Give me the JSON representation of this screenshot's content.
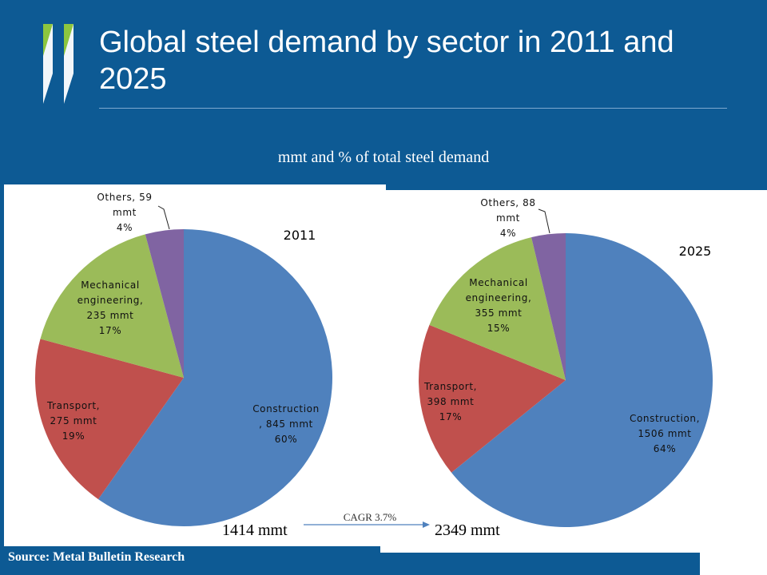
{
  "header": {
    "title": "Global steel demand by sector in 2011 and 2025",
    "subtitle": "mmt and % of total steel demand"
  },
  "footer": {
    "source": "Source: Metal Bulletin Research"
  },
  "colors": {
    "background": "#0d5a94",
    "construction": "#4f81bd",
    "transport": "#c0504d",
    "mechanical": "#9bbb59",
    "others": "#8064a2",
    "arrow": "#4f81bd"
  },
  "growth": {
    "label": "CAGR 3.7%",
    "from_total": "1414 mmt",
    "to_total": "2349 mmt"
  },
  "chart_data": [
    {
      "type": "pie",
      "title": "2011",
      "unit": "mmt",
      "slices": [
        {
          "name": "Construction",
          "value": 845,
          "percent": 60,
          "label_lines": [
            "Construction",
            ", 845 mmt",
            "60%"
          ]
        },
        {
          "name": "Transport",
          "value": 275,
          "percent": 19,
          "label_lines": [
            "Transport,",
            "275 mmt",
            "19%"
          ]
        },
        {
          "name": "Mechanical engineering",
          "value": 235,
          "percent": 17,
          "label_lines": [
            "Mechanical",
            "engineering,",
            "235 mmt",
            "17%"
          ]
        },
        {
          "name": "Others",
          "value": 59,
          "percent": 4,
          "label_lines": [
            "Others, 59",
            "mmt",
            "4%"
          ]
        }
      ]
    },
    {
      "type": "pie",
      "title": "2025",
      "unit": "mmt",
      "slices": [
        {
          "name": "Construction",
          "value": 1506,
          "percent": 64,
          "label_lines": [
            "Construction,",
            "1506 mmt",
            "64%"
          ]
        },
        {
          "name": "Transport",
          "value": 398,
          "percent": 17,
          "label_lines": [
            "Transport,",
            "398 mmt",
            "17%"
          ]
        },
        {
          "name": "Mechanical engineering",
          "value": 355,
          "percent": 15,
          "label_lines": [
            "Mechanical",
            "engineering,",
            "355 mmt",
            "15%"
          ]
        },
        {
          "name": "Others",
          "value": 88,
          "percent": 4,
          "label_lines": [
            "Others, 88",
            "mmt",
            "4%"
          ]
        }
      ]
    }
  ]
}
